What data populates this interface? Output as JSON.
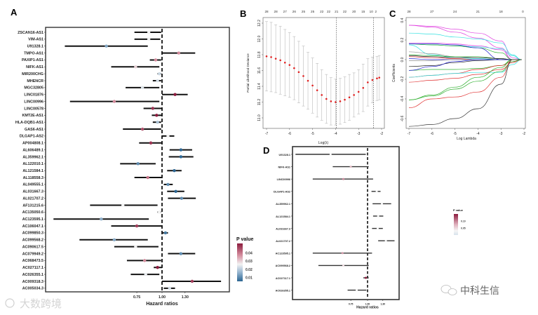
{
  "chart_data": [
    {
      "panel": "A",
      "type": "forest",
      "xlabel": "Hazard ratios",
      "xscale": "log",
      "xticks": [
        "0.75",
        "1.00",
        "1.30"
      ],
      "xtick_values": [
        0.75,
        1.0,
        1.3
      ],
      "reference_line": 1.0,
      "legend": {
        "title": "P value",
        "ticks": [
          "0.04",
          "0.03",
          "0.02",
          "0.01"
        ],
        "tick_values": [
          0.04,
          0.03,
          0.02,
          0.01
        ],
        "placement": "right"
      },
      "rows": [
        {
          "gene": "ZSCAN16-AS1",
          "hr": 0.86,
          "lo": 0.73,
          "hi": 0.99,
          "p": 0.025
        },
        {
          "gene": "VIM-AS1",
          "hr": 0.86,
          "lo": 0.73,
          "hi": 0.98,
          "p": 0.025
        },
        {
          "gene": "U91328.1",
          "hr": 0.53,
          "lo": 0.33,
          "hi": 0.85,
          "p": 0.014
        },
        {
          "gene": "TMPO-AS1",
          "hr": 1.21,
          "lo": 1.0,
          "hi": 1.46,
          "p": 0.035
        },
        {
          "gene": "PAXIP1-AS1",
          "hr": 0.93,
          "lo": 0.87,
          "hi": 0.99,
          "p": 0.035
        },
        {
          "gene": "NIFK-AS1",
          "hr": 0.74,
          "lo": 0.56,
          "hi": 0.97,
          "p": 0.028
        },
        {
          "gene": "MIR200CHG",
          "hr": 0.97,
          "lo": 0.95,
          "hi": 0.99,
          "p": 0.021
        },
        {
          "gene": "MHENCR",
          "hr": 0.95,
          "lo": 0.9,
          "hi": 0.99,
          "p": 0.022
        },
        {
          "gene": "MGC32805",
          "hr": 0.8,
          "lo": 0.66,
          "hi": 0.97,
          "p": 0.023
        },
        {
          "gene": "LINC01876",
          "hr": 1.16,
          "lo": 1.0,
          "hi": 1.34,
          "p": 0.045
        },
        {
          "gene": "LINC00996",
          "hr": 0.58,
          "lo": 0.35,
          "hi": 0.97,
          "p": 0.035
        },
        {
          "gene": "LINC00578",
          "hr": 0.9,
          "lo": 0.81,
          "hi": 1.0,
          "p": 0.043
        },
        {
          "gene": "KMT2E-AS1",
          "hr": 0.94,
          "lo": 0.89,
          "hi": 1.0,
          "p": 0.046
        },
        {
          "gene": "HLA-DQB1-AS1",
          "hr": 0.95,
          "lo": 0.9,
          "hi": 0.99,
          "p": 0.018
        },
        {
          "gene": "GAS6-AS1",
          "hr": 0.8,
          "lo": 0.64,
          "hi": 0.99,
          "p": 0.04
        },
        {
          "gene": "DLGAP1-AS2",
          "hr": 1.07,
          "lo": 1.0,
          "hi": 1.15,
          "p": 0.025
        },
        {
          "gene": "AP004808.1",
          "hr": 0.88,
          "lo": 0.77,
          "hi": 1.0,
          "p": 0.043
        },
        {
          "gene": "AL606489.1",
          "hr": 1.24,
          "lo": 1.09,
          "hi": 1.41,
          "p": 0.005
        },
        {
          "gene": "AL359962.1",
          "hr": 1.24,
          "lo": 1.08,
          "hi": 1.43,
          "p": 0.005
        },
        {
          "gene": "AL122010.1",
          "hr": 0.76,
          "lo": 0.62,
          "hi": 0.93,
          "p": 0.01
        },
        {
          "gene": "AL121584.1",
          "hr": 1.15,
          "lo": 1.06,
          "hi": 1.25,
          "p": 0.005
        },
        {
          "gene": "AL118558.3",
          "hr": 0.85,
          "lo": 0.73,
          "hi": 1.0,
          "p": 0.037
        },
        {
          "gene": "AL049555.1",
          "hr": 1.07,
          "lo": 1.02,
          "hi": 1.13,
          "p": 0.01
        },
        {
          "gene": "AL031667.3",
          "hr": 1.17,
          "lo": 1.06,
          "hi": 1.29,
          "p": 0.005
        },
        {
          "gene": "AL021707.2",
          "hr": 1.25,
          "lo": 1.07,
          "hi": 1.47,
          "p": 0.01
        },
        {
          "gene": "AF131215.6",
          "hr": 0.64,
          "lo": 0.44,
          "hi": 0.95,
          "p": 0.025
        },
        {
          "gene": "AC135050.6",
          "hr": 0.97,
          "lo": 0.95,
          "hi": 0.99,
          "p": 0.025
        },
        {
          "gene": "AC123595.1",
          "hr": 0.5,
          "lo": 0.29,
          "hi": 0.86,
          "p": 0.015
        },
        {
          "gene": "AC106047.1",
          "hr": 0.75,
          "lo": 0.56,
          "hi": 1.0,
          "p": 0.042
        },
        {
          "gene": "AC099850.3",
          "hr": 1.04,
          "lo": 1.0,
          "hi": 1.07,
          "p": 0.008
        },
        {
          "gene": "AC099568.2",
          "hr": 0.58,
          "lo": 0.39,
          "hi": 0.85,
          "p": 0.014
        },
        {
          "gene": "AC090617.5",
          "hr": 0.74,
          "lo": 0.58,
          "hi": 0.96,
          "p": 0.025
        },
        {
          "gene": "AC079949.2",
          "hr": 1.24,
          "lo": 1.07,
          "hi": 1.46,
          "p": 0.01
        },
        {
          "gene": "AC068473.5",
          "hr": 0.82,
          "lo": 0.67,
          "hi": 0.99,
          "p": 0.035
        },
        {
          "gene": "AC027117.1",
          "hr": 0.95,
          "lo": 0.91,
          "hi": 1.0,
          "p": 0.045
        },
        {
          "gene": "AC026355.1",
          "hr": 0.83,
          "lo": 0.7,
          "hi": 0.97,
          "p": 0.024
        },
        {
          "gene": "AC009318.3",
          "hr": 1.41,
          "lo": 1.0,
          "hi": 1.96,
          "p": 0.042
        },
        {
          "gene": "AC005034.3",
          "hr": 1.09,
          "lo": 1.02,
          "hi": 1.16,
          "p": 0.022
        }
      ]
    },
    {
      "panel": "B",
      "type": "scatter",
      "xlabel": "Log(λ)",
      "ylabel": "Partial Likelihood Deviance",
      "xlim": [
        -7.1,
        -1.95
      ],
      "ylim": [
        10.88,
        12.28
      ],
      "xticks": [
        "-7",
        "-6",
        "-5",
        "-4",
        "-3",
        "-2"
      ],
      "xtick_values": [
        -7,
        -6,
        -5,
        -4,
        -3,
        -2
      ],
      "yticks": [
        "11.0",
        "11.2",
        "11.4",
        "11.6",
        "11.8",
        "12.0",
        "12.2"
      ],
      "ytick_values": [
        11.0,
        11.2,
        11.4,
        11.6,
        11.8,
        12.0,
        12.2
      ],
      "top_axis_labels": [
        "28",
        "28",
        "27",
        "26",
        "25",
        "25",
        "22",
        "22",
        "21",
        "22",
        "20",
        "15",
        "10",
        "2"
      ],
      "top_axis_positions": [
        -7.0,
        -6.6,
        -6.2,
        -5.8,
        -5.4,
        -5.0,
        -4.6,
        -4.3,
        -3.96,
        -3.6,
        -3.2,
        -2.8,
        -2.45,
        -2.25
      ],
      "vlines": [
        -3.96,
        -2.35
      ],
      "x": [
        -7.0,
        -6.8,
        -6.6,
        -6.4,
        -6.2,
        -6.0,
        -5.8,
        -5.6,
        -5.4,
        -5.2,
        -5.0,
        -4.8,
        -4.6,
        -4.4,
        -4.2,
        -4.0,
        -3.8,
        -3.6,
        -3.4,
        -3.2,
        -3.0,
        -2.8,
        -2.6,
        -2.4,
        -2.2,
        -2.1
      ],
      "mean": [
        11.78,
        11.77,
        11.75,
        11.73,
        11.7,
        11.67,
        11.63,
        11.58,
        11.53,
        11.47,
        11.41,
        11.35,
        11.29,
        11.24,
        11.21,
        11.2,
        11.21,
        11.23,
        11.26,
        11.29,
        11.33,
        11.38,
        11.45,
        11.48,
        11.5,
        11.51
      ],
      "se": [
        0.44,
        0.44,
        0.43,
        0.43,
        0.42,
        0.41,
        0.4,
        0.39,
        0.38,
        0.36,
        0.35,
        0.34,
        0.32,
        0.31,
        0.3,
        0.29,
        0.29,
        0.29,
        0.29,
        0.28,
        0.28,
        0.3,
        0.3,
        0.29,
        0.28,
        0.28
      ]
    },
    {
      "panel": "C",
      "type": "line",
      "xlabel": "Log Lambda",
      "ylabel": "Coefficients",
      "xlim": [
        -7.1,
        -1.95
      ],
      "ylim": [
        -0.72,
        0.42
      ],
      "xticks": [
        "-7",
        "-6",
        "-5",
        "-4",
        "-3",
        "-2"
      ],
      "xtick_values": [
        -7,
        -6,
        -5,
        -4,
        -3,
        -2
      ],
      "yticks": [
        "-0.6",
        "-0.4",
        "-0.2",
        "0.0",
        "0.2",
        "0.4"
      ],
      "ytick_values": [
        -0.6,
        -0.4,
        -0.2,
        0.0,
        0.2,
        0.4
      ],
      "top_axis_labels": [
        "28",
        "27",
        "24",
        "21",
        "18",
        "0"
      ],
      "top_axis_positions": [
        -7,
        -6,
        -5,
        -4,
        -3,
        -2.05
      ],
      "x": [
        -7,
        -6,
        -5,
        -4,
        -3,
        -2.5,
        -2.1
      ],
      "series": [
        {
          "color": "#e040e0",
          "values": [
            0.35,
            0.34,
            0.31,
            0.27,
            0.19,
            0.02,
            0
          ]
        },
        {
          "color": "#e040e0",
          "values": [
            0.35,
            0.33,
            0.28,
            0.22,
            0.12,
            0,
            0
          ]
        },
        {
          "color": "#30e0e0",
          "values": [
            0.27,
            0.26,
            0.23,
            0.21,
            0.17,
            0.05,
            0
          ]
        },
        {
          "color": "#e040e0",
          "values": [
            0.17,
            0.17,
            0.16,
            0.14,
            0.1,
            0,
            0
          ]
        },
        {
          "color": "#30e0e0",
          "values": [
            0.16,
            0.15,
            0.14,
            0.13,
            0.11,
            0.04,
            0
          ]
        },
        {
          "color": "#30b030",
          "values": [
            0.16,
            0.15,
            0.14,
            0.12,
            0.07,
            0,
            0
          ]
        },
        {
          "color": "#2020d0",
          "values": [
            0.16,
            0.16,
            0.15,
            0.12,
            0,
            0,
            0
          ]
        },
        {
          "color": "#30e0e0",
          "values": [
            0.15,
            0.05,
            0.02,
            0.01,
            0,
            0,
            0
          ]
        },
        {
          "color": "#909090",
          "values": [
            0.08,
            0.06,
            0.03,
            0.02,
            0.01,
            0,
            0
          ]
        },
        {
          "color": "#30b030",
          "values": [
            0.05,
            0.04,
            0.03,
            0.03,
            0.01,
            0,
            0
          ]
        },
        {
          "color": "#222222",
          "values": [
            0.04,
            0.03,
            0.02,
            0.02,
            0.01,
            0,
            0
          ]
        },
        {
          "color": "#e03030",
          "values": [
            0.03,
            0.02,
            0.01,
            0,
            0,
            0,
            0
          ]
        },
        {
          "color": "#2020d0",
          "values": [
            0.01,
            0,
            0,
            0,
            0,
            0,
            0
          ]
        },
        {
          "color": "#909090",
          "values": [
            -0.01,
            -0.01,
            0,
            0,
            0,
            0,
            0
          ]
        },
        {
          "color": "#222222",
          "values": [
            -0.07,
            -0.06,
            -0.03,
            -0.01,
            0,
            0,
            0
          ]
        },
        {
          "color": "#30b030",
          "values": [
            -0.11,
            -0.1,
            -0.1,
            -0.09,
            -0.06,
            0,
            0
          ]
        },
        {
          "color": "#2020d0",
          "values": [
            -0.11,
            -0.07,
            -0.02,
            0,
            0,
            0,
            0
          ]
        },
        {
          "color": "#e03030",
          "values": [
            -0.18,
            -0.16,
            -0.14,
            -0.1,
            -0.06,
            -0.02,
            0
          ]
        },
        {
          "color": "#30e0e0",
          "values": [
            -0.18,
            -0.16,
            -0.14,
            -0.13,
            -0.13,
            -0.05,
            0
          ]
        },
        {
          "color": "#e03030",
          "values": [
            -0.23,
            -0.21,
            -0.19,
            -0.15,
            -0.1,
            -0.03,
            0
          ]
        },
        {
          "color": "#30b030",
          "values": [
            -0.41,
            -0.37,
            -0.3,
            -0.22,
            -0.12,
            -0.02,
            0
          ]
        },
        {
          "color": "#e03030",
          "values": [
            -0.49,
            -0.4,
            -0.38,
            -0.33,
            -0.18,
            0,
            0
          ]
        },
        {
          "color": "#30b030",
          "values": [
            -0.41,
            -0.36,
            -0.28,
            -0.18,
            -0.08,
            0,
            0
          ]
        },
        {
          "color": "#333333",
          "values": [
            -0.68,
            -0.66,
            -0.6,
            -0.5,
            -0.25,
            0,
            0
          ]
        }
      ]
    },
    {
      "panel": "D",
      "type": "forest",
      "xlabel": "Hazard ratios",
      "xscale": "log",
      "xticks": [
        "0.75",
        "1.00",
        "1.30"
      ],
      "xtick_values": [
        0.75,
        1.0,
        1.3
      ],
      "reference_line": 1.0,
      "legend": {
        "title": "P value",
        "ticks": [
          "0.10",
          "0.05"
        ],
        "tick_values": [
          0.1,
          0.05
        ],
        "placement": "right"
      },
      "rows": [
        {
          "gene": "U91328.1",
          "hr": 0.53,
          "lo": 0.29,
          "hi": 0.97,
          "p": 0.03
        },
        {
          "gene": "NIFK-AS1",
          "hr": 0.75,
          "lo": 0.55,
          "hi": 1.02,
          "p": 0.07
        },
        {
          "gene": "LINC00996",
          "hr": 0.66,
          "lo": 0.39,
          "hi": 1.1,
          "p": 0.1
        },
        {
          "gene": "DLGAP1-AS2",
          "hr": 1.17,
          "lo": 1.07,
          "hi": 1.25,
          "p": 0.03
        },
        {
          "gene": "AL359962.1",
          "hr": 1.28,
          "lo": 1.09,
          "hi": 1.5,
          "p": 0.03
        },
        {
          "gene": "AL121584.1",
          "hr": 1.2,
          "lo": 1.1,
          "hi": 1.31,
          "p": 0.03
        },
        {
          "gene": "AL031667.3",
          "hr": 1.19,
          "lo": 1.08,
          "hi": 1.3,
          "p": 0.03
        },
        {
          "gene": "AL021707.2",
          "hr": 1.37,
          "lo": 1.2,
          "hi": 1.59,
          "p": 0.03
        },
        {
          "gene": "AC123595.1",
          "hr": 0.65,
          "lo": 0.39,
          "hi": 1.08,
          "p": 0.09
        },
        {
          "gene": "AC099568.2",
          "hr": 0.66,
          "lo": 0.43,
          "hi": 1.02,
          "p": 0.05
        },
        {
          "gene": "AC027117.1",
          "hr": 0.97,
          "lo": 0.93,
          "hi": 1.02,
          "p": 0.15
        },
        {
          "gene": "AC026355.1",
          "hr": 0.83,
          "lo": 0.71,
          "hi": 0.98,
          "p": 0.03
        }
      ]
    }
  ],
  "panel_labels": {
    "a": "A",
    "b": "B",
    "c": "C",
    "d": "D"
  },
  "watermarks": {
    "left": "大数跨境",
    "right": "中科生信"
  }
}
